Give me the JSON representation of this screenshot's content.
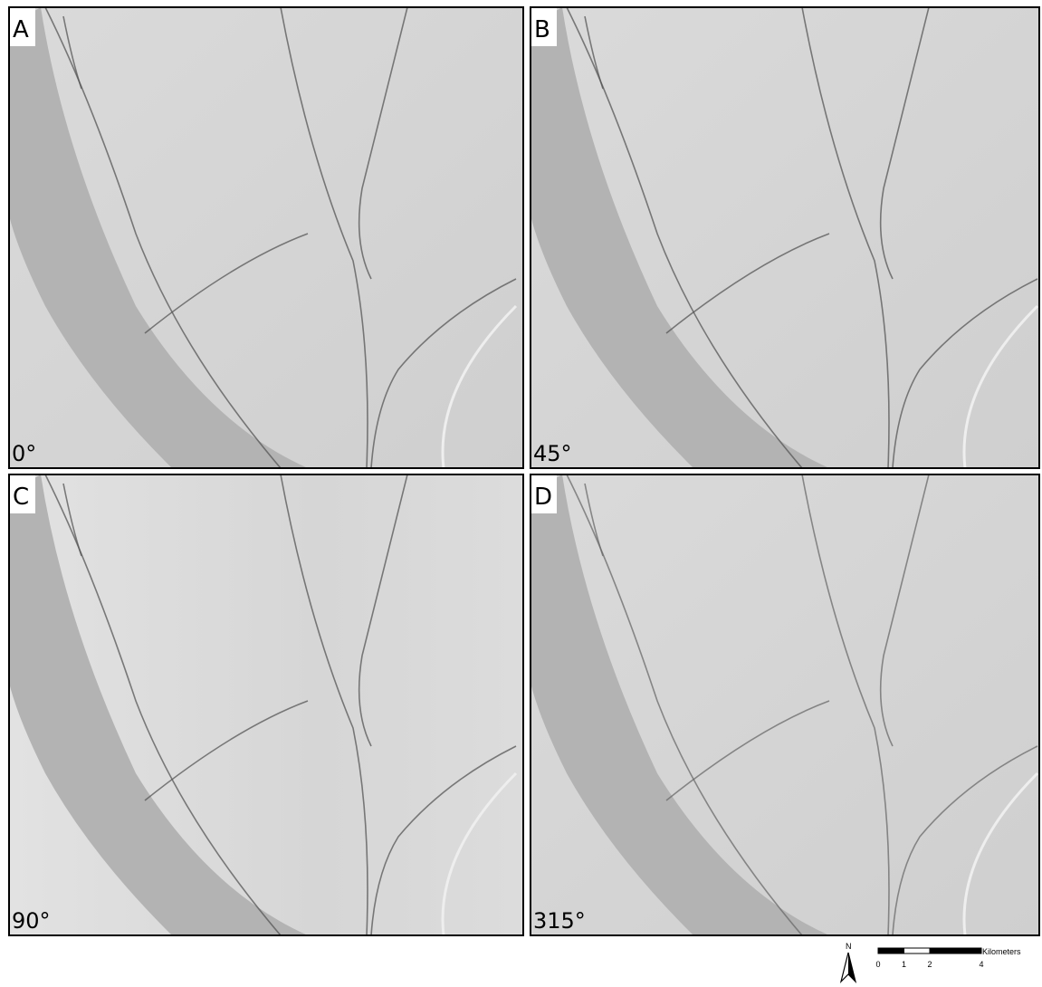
{
  "panels": [
    {
      "letter": "A",
      "azimuth": "0°"
    },
    {
      "letter": "B",
      "azimuth": "45°"
    },
    {
      "letter": "C",
      "azimuth": "90°"
    },
    {
      "letter": "D",
      "azimuth": "315°"
    }
  ],
  "north_arrow": "N",
  "scale_bar": {
    "ticks": [
      0,
      1,
      2,
      4
    ],
    "unit": "Kilometers"
  }
}
